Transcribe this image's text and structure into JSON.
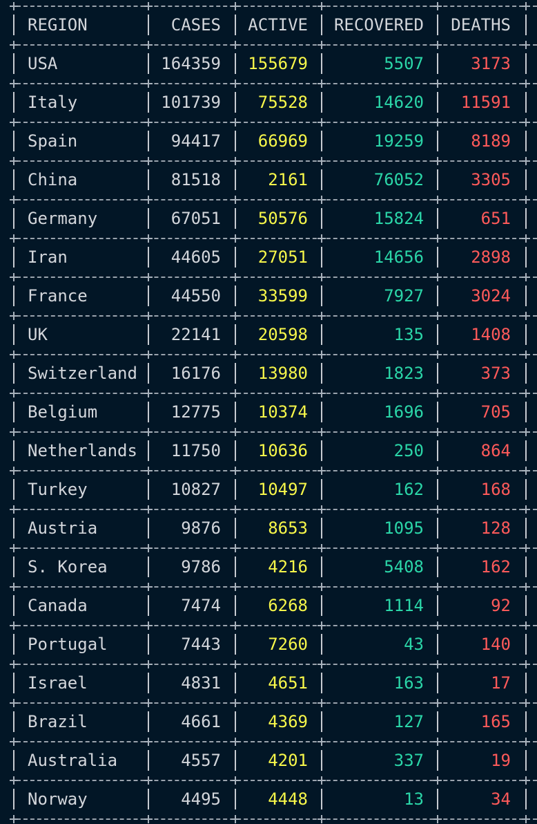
{
  "table": {
    "headers": [
      "REGION",
      "CASES",
      "ACTIVE",
      "RECOVERED",
      "DEATHS"
    ],
    "rows": [
      [
        "USA",
        "164359",
        "155679",
        "5507",
        "3173"
      ],
      [
        "Italy",
        "101739",
        "75528",
        "14620",
        "11591"
      ],
      [
        "Spain",
        "94417",
        "66969",
        "19259",
        "8189"
      ],
      [
        "China",
        "81518",
        "2161",
        "76052",
        "3305"
      ],
      [
        "Germany",
        "67051",
        "50576",
        "15824",
        "651"
      ],
      [
        "Iran",
        "44605",
        "27051",
        "14656",
        "2898"
      ],
      [
        "France",
        "44550",
        "33599",
        "7927",
        "3024"
      ],
      [
        "UK",
        "22141",
        "20598",
        "135",
        "1408"
      ],
      [
        "Switzerland",
        "16176",
        "13980",
        "1823",
        "373"
      ],
      [
        "Belgium",
        "12775",
        "10374",
        "1696",
        "705"
      ],
      [
        "Netherlands",
        "11750",
        "10636",
        "250",
        "864"
      ],
      [
        "Turkey",
        "10827",
        "10497",
        "162",
        "168"
      ],
      [
        "Austria",
        "9876",
        "8653",
        "1095",
        "128"
      ],
      [
        "S. Korea",
        "9786",
        "4216",
        "5408",
        "162"
      ],
      [
        "Canada",
        "7474",
        "6268",
        "1114",
        "92"
      ],
      [
        "Portugal",
        "7443",
        "7260",
        "43",
        "140"
      ],
      [
        "Israel",
        "4831",
        "4651",
        "163",
        "17"
      ],
      [
        "Brazil",
        "4661",
        "4369",
        "127",
        "165"
      ],
      [
        "Australia",
        "4557",
        "4201",
        "337",
        "19"
      ],
      [
        "Norway",
        "4495",
        "4448",
        "13",
        "34"
      ]
    ]
  },
  "colors": {
    "background": "#021626",
    "text": "#d3d6db",
    "active": "#f7f74a",
    "recovered": "#2bd6a8",
    "deaths": "#ff5a5a",
    "border": "#9aa3ad"
  }
}
